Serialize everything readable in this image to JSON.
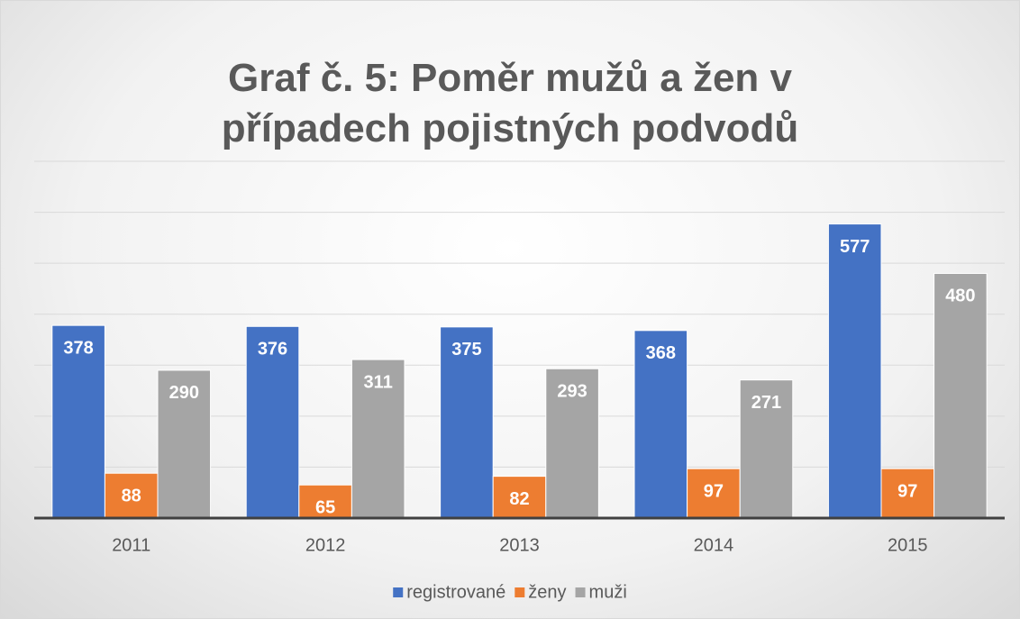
{
  "chart_data": {
    "type": "bar",
    "title": "Graf č. 5: Poměr mužů a žen v případech pojistných podvodů",
    "categories": [
      "2011",
      "2012",
      "2013",
      "2014",
      "2015"
    ],
    "series": [
      {
        "name": "registrované",
        "color": "#4472c4",
        "values": [
          378,
          376,
          375,
          368,
          577
        ]
      },
      {
        "name": "ženy",
        "color": "#ed7d31",
        "values": [
          88,
          65,
          82,
          97,
          97
        ]
      },
      {
        "name": "muži",
        "color": "#a5a5a5",
        "values": [
          290,
          311,
          293,
          271,
          480
        ]
      }
    ],
    "ylim": [
      0,
      700
    ],
    "yticks": [
      0,
      100,
      200,
      300,
      400,
      500,
      600,
      700
    ],
    "grid": true,
    "legend": "bottom"
  }
}
